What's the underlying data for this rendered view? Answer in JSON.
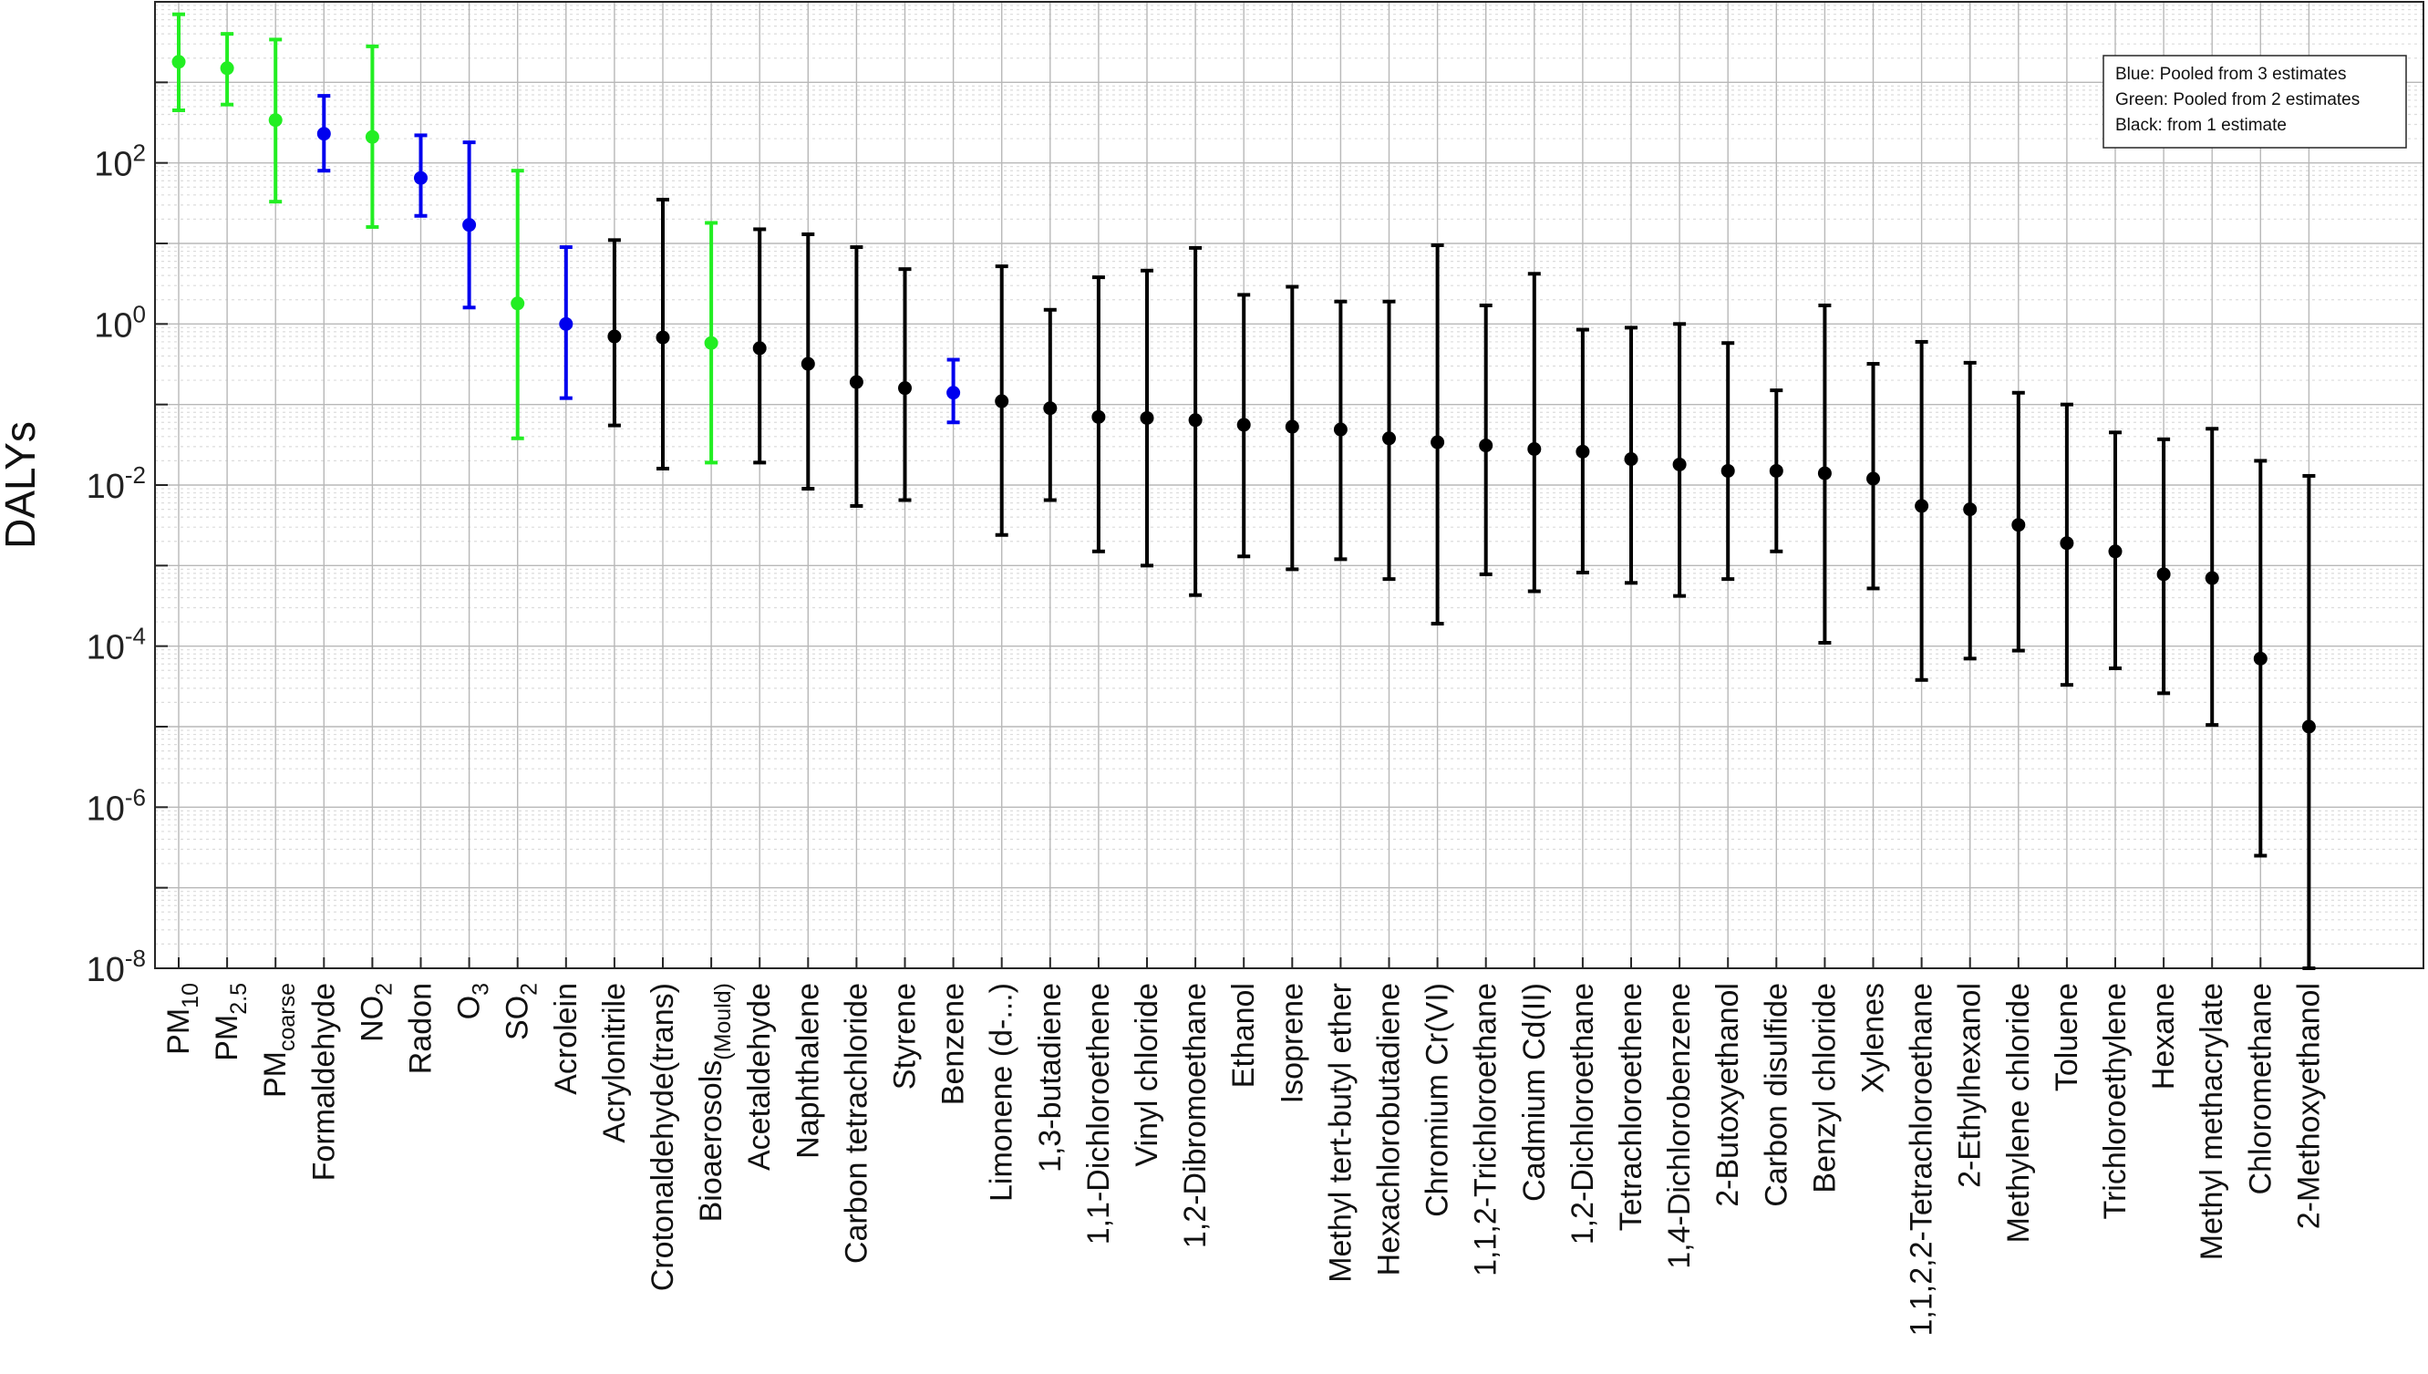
{
  "chart_data": {
    "type": "scatter",
    "ylabel": "DALYs",
    "y_scale": "log",
    "ylim": [
      1e-08,
      10000
    ],
    "grid": true,
    "legend_position": "top-right",
    "legend": [
      "Blue: Pooled from 3 estimates",
      "Green: Pooled from 2 estimates",
      "Black: from 1 estimate"
    ],
    "series_colors": {
      "blue": "#0000ee",
      "green": "#22ee22",
      "black": "#000000"
    },
    "yticks": [
      {
        "base": "10",
        "exp": "-8"
      },
      {
        "base": "10",
        "exp": "-6"
      },
      {
        "base": "10",
        "exp": "-4"
      },
      {
        "base": "10",
        "exp": "-2"
      },
      {
        "base": "10",
        "exp": "0"
      },
      {
        "base": "10",
        "exp": "2"
      }
    ],
    "points": [
      {
        "label": "PM",
        "sub": "10",
        "y": 1800,
        "low": 450,
        "high": 7000,
        "color": "green"
      },
      {
        "label": "PM",
        "sub": "2.5",
        "y": 1500,
        "low": 530,
        "high": 4000,
        "color": "green"
      },
      {
        "label": "PM",
        "sub": "coarse",
        "y": 340,
        "low": 33,
        "high": 3400,
        "color": "green"
      },
      {
        "label": "Formaldehyde",
        "sub": "",
        "y": 230,
        "low": 80,
        "high": 680,
        "color": "blue"
      },
      {
        "label": "NO",
        "sub": "2",
        "y": 210,
        "low": 16,
        "high": 2800,
        "color": "green"
      },
      {
        "label": "Radon",
        "sub": "",
        "y": 65,
        "low": 22,
        "high": 220,
        "color": "blue"
      },
      {
        "label": "O",
        "sub": "3",
        "y": 17,
        "low": 1.6,
        "high": 180,
        "color": "blue"
      },
      {
        "label": "SO",
        "sub": "2",
        "y": 1.8,
        "low": 0.038,
        "high": 80,
        "color": "green"
      },
      {
        "label": "Acrolein",
        "sub": "",
        "y": 1.0,
        "low": 0.12,
        "high": 9,
        "color": "blue"
      },
      {
        "label": "Acrylonitrile",
        "sub": "",
        "y": 0.7,
        "low": 0.055,
        "high": 11,
        "color": "black"
      },
      {
        "label": "Crotonaldehyde(trans)",
        "sub": "",
        "y": 0.68,
        "low": 0.016,
        "high": 35,
        "color": "black"
      },
      {
        "label": "Bioaerosols",
        "sub": "(Mould)",
        "y": 0.58,
        "low": 0.019,
        "high": 18,
        "color": "green"
      },
      {
        "label": "Acetaldehyde",
        "sub": "",
        "y": 0.5,
        "low": 0.019,
        "high": 15,
        "color": "black"
      },
      {
        "label": "Naphthalene",
        "sub": "",
        "y": 0.32,
        "low": 0.009,
        "high": 13,
        "color": "black"
      },
      {
        "label": "Carbon tetrachloride",
        "sub": "",
        "y": 0.19,
        "low": 0.0055,
        "high": 9,
        "color": "black"
      },
      {
        "label": "Styrene",
        "sub": "",
        "y": 0.16,
        "low": 0.0065,
        "high": 4.8,
        "color": "black"
      },
      {
        "label": "Benzene",
        "sub": "",
        "y": 0.14,
        "low": 0.06,
        "high": 0.36,
        "color": "blue"
      },
      {
        "label": "Limonene (d-...)",
        "sub": "",
        "y": 0.11,
        "low": 0.0024,
        "high": 5.2,
        "color": "black"
      },
      {
        "label": "1,3-butadiene",
        "sub": "",
        "y": 0.09,
        "low": 0.0065,
        "high": 1.5,
        "color": "black"
      },
      {
        "label": "1,1-Dichloroethene",
        "sub": "",
        "y": 0.07,
        "low": 0.0015,
        "high": 3.8,
        "color": "black"
      },
      {
        "label": "Vinyl chloride",
        "sub": "",
        "y": 0.068,
        "low": 0.001,
        "high": 4.6,
        "color": "black"
      },
      {
        "label": "1,2-Dibromoethane",
        "sub": "",
        "y": 0.064,
        "low": 0.00043,
        "high": 8.8,
        "color": "black"
      },
      {
        "label": "Ethanol",
        "sub": "",
        "y": 0.056,
        "low": 0.0013,
        "high": 2.3,
        "color": "black"
      },
      {
        "label": "Isoprene",
        "sub": "",
        "y": 0.053,
        "low": 0.0009,
        "high": 2.9,
        "color": "black"
      },
      {
        "label": "Methyl tert-butyl ether",
        "sub": "",
        "y": 0.049,
        "low": 0.0012,
        "high": 1.9,
        "color": "black"
      },
      {
        "label": "Hexachlorobutadiene",
        "sub": "",
        "y": 0.038,
        "low": 0.00068,
        "high": 1.9,
        "color": "black"
      },
      {
        "label": "Chromium Cr(VI)",
        "sub": "",
        "y": 0.034,
        "low": 0.00019,
        "high": 9.5,
        "color": "black"
      },
      {
        "label": "1,1,2-Trichloroethane",
        "sub": "",
        "y": 0.031,
        "low": 0.00078,
        "high": 1.7,
        "color": "black"
      },
      {
        "label": "Cadmium Cd(II)",
        "sub": "",
        "y": 0.028,
        "low": 0.00048,
        "high": 4.2,
        "color": "black"
      },
      {
        "label": "1,2-Dichloroethane",
        "sub": "",
        "y": 0.026,
        "low": 0.00082,
        "high": 0.85,
        "color": "black"
      },
      {
        "label": "Tetrachloroethene",
        "sub": "",
        "y": 0.021,
        "low": 0.00061,
        "high": 0.9,
        "color": "black"
      },
      {
        "label": "1,4-Dichlorobenzene",
        "sub": "",
        "y": 0.018,
        "low": 0.00042,
        "high": 1.0,
        "color": "black"
      },
      {
        "label": "2-Butoxyethanol",
        "sub": "",
        "y": 0.015,
        "low": 0.00068,
        "high": 0.58,
        "color": "black"
      },
      {
        "label": "Carbon disulfide",
        "sub": "",
        "y": 0.015,
        "low": 0.0015,
        "high": 0.15,
        "color": "black"
      },
      {
        "label": "Benzyl chloride",
        "sub": "",
        "y": 0.014,
        "low": 0.00011,
        "high": 1.7,
        "color": "black"
      },
      {
        "label": "Xylenes",
        "sub": "",
        "y": 0.012,
        "low": 0.00052,
        "high": 0.32,
        "color": "black"
      },
      {
        "label": "1,1,2,2-Tetrachloroethane",
        "sub": "",
        "y": 0.0055,
        "low": 3.8e-05,
        "high": 0.6,
        "color": "black"
      },
      {
        "label": "2-Ethylhexanol",
        "sub": "",
        "y": 0.005,
        "low": 7e-05,
        "high": 0.33,
        "color": "black"
      },
      {
        "label": "Methylene chloride",
        "sub": "",
        "y": 0.0032,
        "low": 8.8e-05,
        "high": 0.14,
        "color": "black"
      },
      {
        "label": "Toluene",
        "sub": "",
        "y": 0.0019,
        "low": 3.3e-05,
        "high": 0.1,
        "color": "black"
      },
      {
        "label": "Trichloroethylene",
        "sub": "",
        "y": 0.0015,
        "low": 5.3e-05,
        "high": 0.045,
        "color": "black"
      },
      {
        "label": "Hexane",
        "sub": "",
        "y": 0.00078,
        "low": 2.6e-05,
        "high": 0.037,
        "color": "black"
      },
      {
        "label": "Methyl methacrylate",
        "sub": "",
        "y": 0.0007,
        "low": 1.05e-05,
        "high": 0.05,
        "color": "black"
      },
      {
        "label": "Chloromethane",
        "sub": "",
        "y": 7e-05,
        "low": 2.5e-07,
        "high": 0.02,
        "color": "black"
      },
      {
        "label": "2-Methoxyethanol",
        "sub": "",
        "y": 1e-05,
        "low": 1e-08,
        "high": 0.013,
        "color": "black"
      }
    ]
  }
}
